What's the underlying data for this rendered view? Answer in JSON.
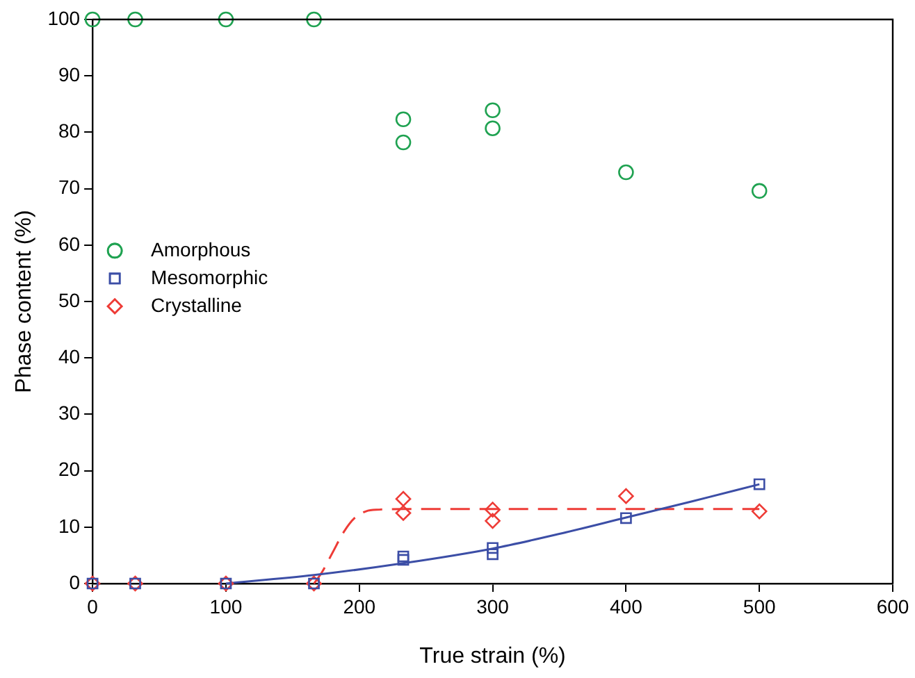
{
  "chart_data": {
    "type": "scatter",
    "xlabel": "True strain (%)",
    "ylabel": "Phase content (%)",
    "xlim": [
      0,
      600
    ],
    "ylim": [
      0,
      100
    ],
    "xticks": [
      0,
      100,
      200,
      300,
      400,
      500,
      600
    ],
    "yticks": [
      0,
      10,
      20,
      30,
      40,
      50,
      60,
      70,
      80,
      90,
      100
    ],
    "grid": false,
    "legend": "left",
    "series": [
      {
        "name": "Amorphous",
        "color": "#1fa251",
        "marker": "circle",
        "x": [
          0,
          32,
          100,
          166,
          233,
          233,
          300,
          300,
          400,
          500
        ],
        "values": [
          100,
          100,
          100,
          100,
          82.3,
          78.2,
          83.9,
          80.7,
          72.9,
          69.6
        ]
      },
      {
        "name": "Mesomorphic",
        "color": "#3c4ea6",
        "marker": "square",
        "x": [
          0,
          32,
          100,
          166,
          233,
          233,
          300,
          300,
          400,
          500
        ],
        "values": [
          0,
          0,
          0,
          0,
          4.8,
          4.2,
          6.3,
          5.2,
          11.6,
          17.6
        ]
      },
      {
        "name": "Crystalline",
        "color": "#ee3b36",
        "marker": "diamond",
        "x": [
          0,
          32,
          100,
          166,
          233,
          233,
          300,
          300,
          400,
          500
        ],
        "values": [
          0,
          0,
          0,
          0,
          15,
          12.5,
          13.1,
          11.1,
          15.5,
          12.8
        ]
      },
      {
        "type": "line",
        "color": "#3c4ea6",
        "marker": "none",
        "line_style": "solid",
        "x": [
          100,
          166,
          233,
          300,
          350,
          400,
          450,
          500
        ],
        "values": [
          0,
          1.5,
          3.6,
          6.2,
          8.8,
          11.7,
          14.6,
          17.6
        ]
      },
      {
        "type": "line",
        "color": "#ee3b36",
        "marker": "none",
        "line_style": "dashed",
        "x": [
          166,
          172,
          180,
          188,
          196,
          205,
          215,
          233,
          300,
          400,
          500
        ],
        "values": [
          0,
          2,
          5.5,
          9,
          11.5,
          12.8,
          13.1,
          13.2,
          13.2,
          13.2,
          13.2
        ]
      }
    ]
  }
}
